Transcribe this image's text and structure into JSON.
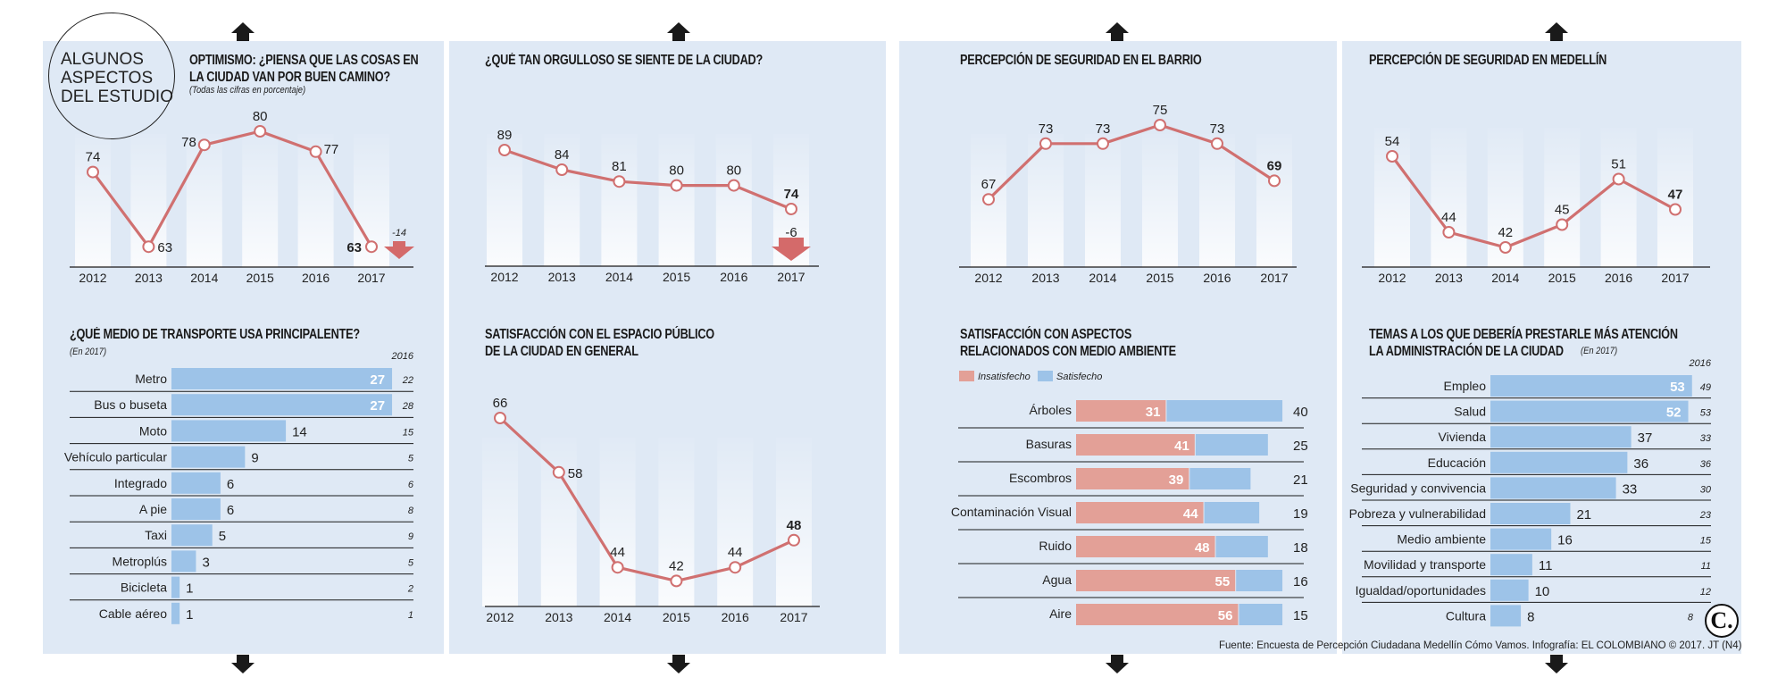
{
  "intro": {
    "lines": [
      "ALGUNOS",
      "ASPECTOS",
      "DEL ESTUDIO"
    ]
  },
  "colors": {
    "panel_bg": "#dfe9f5",
    "line": "#d07070",
    "bar_blue": "#9dc3e8",
    "bar_pink": "#e3a097",
    "arrow_red": "#d46a6a"
  },
  "footer": "Fuente: Encuesta de Percepción Ciudadana Medellín Cómo Vamos. Infografía: EL COLOMBIANO © 2017. JT (N4)",
  "logo": "C.",
  "chart_data": [
    {
      "id": "optimismo",
      "type": "line",
      "title": [
        "OPTIMISMO: ¿PIENSA QUE LAS COSAS EN",
        "LA CIUDAD VAN POR BUEN CAMINO?"
      ],
      "subtitle": "(Todas las cifras en porcentaje)",
      "x": [
        "2012",
        "2013",
        "2014",
        "2015",
        "2016",
        "2017"
      ],
      "values": [
        74,
        63,
        78,
        80,
        77,
        63
      ],
      "change_annotation": "-14",
      "change_direction": "down",
      "highlight_last": true
    },
    {
      "id": "orgullo",
      "type": "line",
      "title": [
        "¿QUÉ TAN ORGULLOSO SE SIENTE DE LA CIUDAD?"
      ],
      "x": [
        "2012",
        "2013",
        "2014",
        "2015",
        "2016",
        "2017"
      ],
      "values": [
        89,
        84,
        81,
        80,
        80,
        74
      ],
      "change_annotation": "-6",
      "change_direction": "down",
      "highlight_last": true
    },
    {
      "id": "seguridad-barrio",
      "type": "line",
      "title": [
        "PERCEPCIÓN DE SEGURIDAD EN EL BARRIO"
      ],
      "x": [
        "2012",
        "2013",
        "2014",
        "2015",
        "2016",
        "2017"
      ],
      "values": [
        67,
        73,
        73,
        75,
        73,
        69
      ],
      "highlight_last": true
    },
    {
      "id": "seguridad-medellin",
      "type": "line",
      "title": [
        "PERCEPCIÓN DE SEGURIDAD EN MEDELLÍN"
      ],
      "x": [
        "2012",
        "2013",
        "2014",
        "2015",
        "2016",
        "2017"
      ],
      "values": [
        54,
        44,
        42,
        45,
        51,
        47
      ],
      "highlight_last": true
    },
    {
      "id": "transporte",
      "type": "bar",
      "orientation": "horizontal",
      "title": [
        "¿QUÉ MEDIO DE TRANSPORTE USA PRINCIPALENTE?"
      ],
      "subtitle": "(En 2017)",
      "prev_header": "2016",
      "categories": [
        "Metro",
        "Bus o buseta",
        "Moto",
        "Vehículo particular",
        "Integrado",
        "A pie",
        "Taxi",
        "Metroplús",
        "Bicicleta",
        "Cable aéreo"
      ],
      "values": [
        27,
        27,
        14,
        9,
        6,
        6,
        5,
        3,
        1,
        1
      ],
      "prev_values": [
        22,
        28,
        15,
        5,
        6,
        8,
        9,
        5,
        2,
        1
      ]
    },
    {
      "id": "espacio-publico",
      "type": "line",
      "title": [
        "SATISFACCIÓN CON EL ESPACIO PÚBLICO",
        "DE LA CIUDAD EN GENERAL"
      ],
      "x": [
        "2012",
        "2013",
        "2014",
        "2015",
        "2016",
        "2017"
      ],
      "values": [
        66,
        58,
        44,
        42,
        44,
        48
      ],
      "highlight_last": true
    },
    {
      "id": "medio-ambiente",
      "type": "bar",
      "orientation": "horizontal",
      "stacked": true,
      "title": [
        "SATISFACCIÓN CON ASPECTOS",
        "RELACIONADOS CON MEDIO AMBIENTE"
      ],
      "legend": [
        "Insatisfecho",
        "Satisfecho"
      ],
      "categories": [
        "Árboles",
        "Basuras",
        "Escombros",
        "Contaminación Visual",
        "Ruido",
        "Agua",
        "Aire"
      ],
      "series": [
        {
          "name": "Insatisfecho",
          "values": [
            31,
            41,
            39,
            44,
            48,
            55,
            56
          ]
        },
        {
          "name": "Satisfecho",
          "values": [
            40,
            25,
            21,
            19,
            18,
            16,
            15
          ]
        }
      ]
    },
    {
      "id": "temas-atencion",
      "type": "bar",
      "orientation": "horizontal",
      "title": [
        "TEMAS A LOS QUE DEBERÍA PRESTARLE MÁS ATENCIÓN",
        "LA ADMINISTRACIÓN DE LA CIUDAD"
      ],
      "subtitle": "(En 2017)",
      "prev_header": "2016",
      "categories": [
        "Empleo",
        "Salud",
        "Vivienda",
        "Educación",
        "Seguridad y convivencia",
        "Pobreza y vulnerabilidad",
        "Medio ambiente",
        "Movilidad y transporte",
        "Igualdad/oportunidades",
        "Cultura"
      ],
      "values": [
        53,
        52,
        37,
        36,
        33,
        21,
        16,
        11,
        10,
        8
      ],
      "prev_values": [
        49,
        53,
        33,
        36,
        30,
        23,
        15,
        11,
        12,
        8
      ]
    }
  ]
}
